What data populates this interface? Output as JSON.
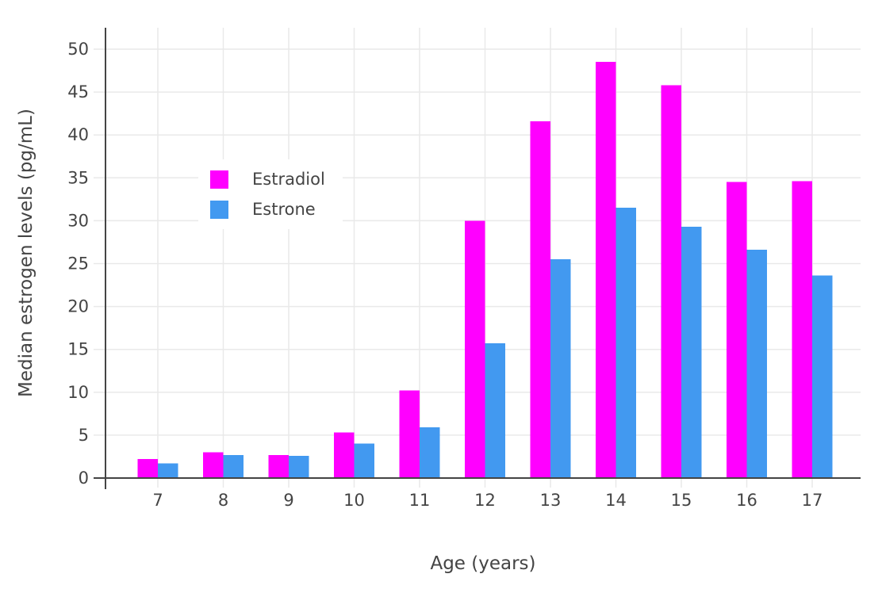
{
  "chart_data": {
    "type": "bar",
    "title": "",
    "xlabel": "Age (years)",
    "ylabel": "Median estrogen levels (pg/mL)",
    "categories": [
      "7",
      "8",
      "9",
      "10",
      "11",
      "12",
      "13",
      "14",
      "15",
      "16",
      "17"
    ],
    "series": [
      {
        "name": "Estradiol",
        "color": "#FF00FF",
        "values": [
          2.2,
          3.0,
          2.7,
          5.3,
          10.2,
          30.0,
          41.6,
          48.5,
          45.8,
          34.5,
          34.6
        ]
      },
      {
        "name": "Estrone",
        "color": "#4299F0",
        "values": [
          1.7,
          2.7,
          2.6,
          4.0,
          5.9,
          15.7,
          25.5,
          31.5,
          29.3,
          26.6,
          23.6
        ]
      }
    ],
    "ylim": [
      0,
      50
    ],
    "yticks": [
      0,
      5,
      10,
      15,
      20,
      25,
      30,
      35,
      40,
      45,
      50
    ],
    "grid": true,
    "legend_position": "inside-upper-left",
    "colors": {
      "text": "#444444",
      "axis_line": "#444444",
      "gridline": "#E9E9E9",
      "plot_background": "#FFFFFF"
    }
  }
}
